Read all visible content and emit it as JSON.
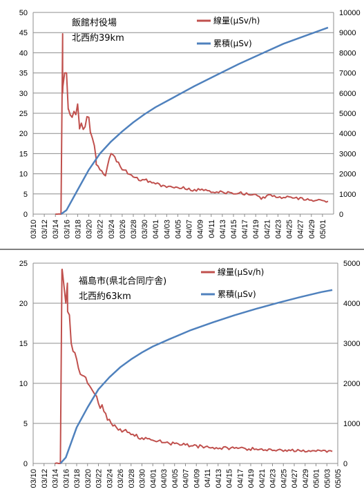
{
  "chart_data": [
    {
      "type": "line",
      "annotation": [
        "飯館村役場",
        "北西約39km"
      ],
      "left_ylim": [
        0,
        50
      ],
      "left_ticks": [
        "0",
        "5",
        "10",
        "15",
        "20",
        "25",
        "30",
        "35",
        "40",
        "45",
        "50"
      ],
      "right_ylim": [
        0,
        10000
      ],
      "right_ticks": [
        "0",
        "1000",
        "2000",
        "3000",
        "4000",
        "5000",
        "6000",
        "7000",
        "8000",
        "9000",
        "10000"
      ],
      "x_start": "03/10",
      "x_end": "05/03",
      "x_ticks": [
        "03/10",
        "03/12",
        "03/14",
        "03/16",
        "03/18",
        "03/20",
        "03/22",
        "03/24",
        "03/26",
        "03/28",
        "03/30",
        "04/01",
        "04/03",
        "04/05",
        "04/07",
        "04/09",
        "04/11",
        "04/13",
        "04/15",
        "04/17",
        "04/19",
        "04/21",
        "04/23",
        "04/25",
        "04/27",
        "04/29",
        "05/01"
      ],
      "grid": true,
      "legend_position": "top-right",
      "colors": {
        "dose_rate": "#c0504d",
        "cumulative": "#4f81bd"
      },
      "series": [
        {
          "name": "線量(μSv/h)",
          "axis": "left",
          "x": [
            "03/14",
            "03/15",
            "03/15",
            "03/15",
            "03/16",
            "03/16",
            "03/17",
            "03/18",
            "03/18",
            "03/19",
            "03/20",
            "03/20",
            "03/21",
            "03/21",
            "03/22",
            "03/23",
            "03/24",
            "03/25",
            "03/26",
            "03/27",
            "03/28",
            "03/30",
            "04/01",
            "04/04",
            "04/08",
            "04/12",
            "04/16",
            "04/19",
            "04/20",
            "04/21",
            "04/22",
            "04/26",
            "04/29",
            "05/02"
          ],
          "values": [
            0.0,
            0.0,
            44.7,
            30.0,
            35.0,
            26.0,
            24.0,
            27.3,
            22.0,
            21.0,
            24.0,
            20.0,
            17.0,
            14.0,
            11.0,
            9.5,
            15.0,
            13.0,
            11.0,
            10.0,
            9.2,
            8.5,
            7.5,
            6.7,
            6.1,
            5.5,
            5.2,
            4.9,
            3.7,
            4.6,
            4.4,
            4.0,
            3.5,
            3.2
          ]
        },
        {
          "name": "累積(μSv)",
          "axis": "right",
          "x": [
            "03/15",
            "03/16",
            "03/18",
            "03/20",
            "03/22",
            "03/24",
            "03/26",
            "03/28",
            "03/30",
            "04/01",
            "04/04",
            "04/08",
            "04/12",
            "04/16",
            "04/20",
            "04/24",
            "04/28",
            "05/02"
          ],
          "values": [
            0,
            200,
            1200,
            2200,
            3000,
            3600,
            4100,
            4550,
            4950,
            5300,
            5750,
            6350,
            6900,
            7450,
            7950,
            8450,
            8850,
            9250
          ]
        }
      ]
    },
    {
      "type": "line",
      "annotation": [
        "福島市(県北合同庁舎)",
        "北西約63km"
      ],
      "left_ylim": [
        0,
        25
      ],
      "left_ticks": [
        "0",
        "5",
        "10",
        "15",
        "20",
        "25"
      ],
      "right_ylim": [
        0,
        5000
      ],
      "right_ticks": [
        "0",
        "1000",
        "2000",
        "3000",
        "4000",
        "5000"
      ],
      "x_start": "03/10",
      "x_end": "05/05",
      "x_ticks": [
        "03/10",
        "03/12",
        "03/14",
        "03/16",
        "03/18",
        "03/20",
        "03/22",
        "03/24",
        "03/26",
        "03/28",
        "03/30",
        "04/01",
        "04/03",
        "04/05",
        "04/07",
        "04/09",
        "04/11",
        "04/13",
        "04/15",
        "04/17",
        "04/19",
        "04/21",
        "04/23",
        "04/25",
        "04/27",
        "04/29",
        "05/01",
        "05/03",
        "05/05"
      ],
      "grid": true,
      "legend_position": "top-right",
      "colors": {
        "dose_rate": "#c0504d",
        "cumulative": "#4f81bd"
      },
      "series": [
        {
          "name": "線量(μSv/h)",
          "axis": "left",
          "x": [
            "03/14",
            "03/15",
            "03/15",
            "03/16",
            "03/16",
            "03/17",
            "03/18",
            "03/19",
            "03/20",
            "03/21",
            "03/22",
            "03/23",
            "03/24",
            "03/25",
            "03/26",
            "03/28",
            "03/30",
            "04/01",
            "04/04",
            "04/08",
            "04/12",
            "04/16",
            "04/20",
            "04/24",
            "04/28",
            "05/02",
            "05/04"
          ],
          "values": [
            0.0,
            0.0,
            24.2,
            20.0,
            22.5,
            15.0,
            13.0,
            11.0,
            10.0,
            9.0,
            7.5,
            6.5,
            5.5,
            4.8,
            4.3,
            3.6,
            3.2,
            2.9,
            2.5,
            2.2,
            2.0,
            1.9,
            1.8,
            1.7,
            1.6,
            1.55,
            1.5
          ]
        },
        {
          "name": "累積(μSv)",
          "axis": "right",
          "x": [
            "03/15",
            "03/16",
            "03/18",
            "03/20",
            "03/22",
            "03/24",
            "03/26",
            "03/28",
            "03/30",
            "04/01",
            "04/04",
            "04/08",
            "04/12",
            "04/16",
            "04/20",
            "04/24",
            "04/28",
            "05/02",
            "05/04"
          ],
          "values": [
            0,
            150,
            900,
            1400,
            1850,
            2150,
            2400,
            2600,
            2770,
            2920,
            3100,
            3330,
            3520,
            3700,
            3860,
            4010,
            4150,
            4280,
            4330
          ]
        }
      ]
    }
  ]
}
